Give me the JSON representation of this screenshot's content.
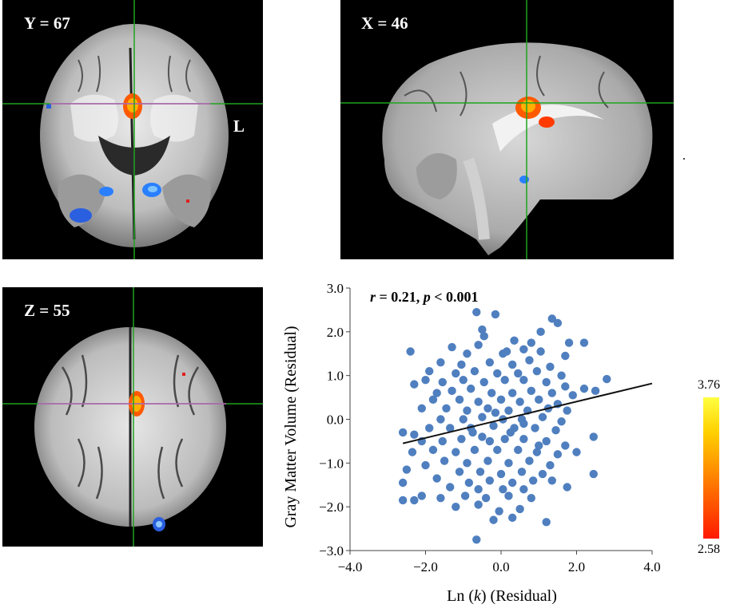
{
  "panels": {
    "coronal": {
      "label": "Y = 67",
      "side_label": "L"
    },
    "sagittal": {
      "label": "X = 46"
    },
    "axial": {
      "label": "Z = 55"
    }
  },
  "colorbar": {
    "max": "3.76",
    "min": "2.58",
    "colors": [
      "#ff1a00",
      "#ff7a00",
      "#ffd000",
      "#ffff40"
    ]
  },
  "colors": {
    "crosshair": "#1fa31f",
    "crosshair_mid": "#c060c0",
    "positive": "#ff6a00",
    "negative": "#2a7fff",
    "points": "#4f7fbf"
  },
  "chart_data": {
    "type": "scatter",
    "annotation": {
      "r_var": "r",
      "r_text": " = 0.21, ",
      "p_var": "p",
      "p_text": " < 0.001"
    },
    "xlabel_prefix": "Ln (",
    "xlabel_var": "k",
    "xlabel_suffix": ") (Residual)",
    "ylabel": "Gray Matter Volume (Residual)",
    "xlim": [
      -4.0,
      4.0
    ],
    "ylim": [
      -3.0,
      3.0
    ],
    "xticks": [
      "−4.0",
      "−2.0",
      "0.0",
      "2.0",
      "4.0"
    ],
    "yticks": [
      "−3.0",
      "−2.0",
      "−1.0",
      "0.0",
      "1.0",
      "2.0",
      "3.0"
    ],
    "fit_line": {
      "x": [
        -2.6,
        4.0
      ],
      "y": [
        -0.55,
        0.82
      ]
    },
    "points": [
      [
        -0.65,
        2.45
      ],
      [
        -0.15,
        2.4
      ],
      [
        1.35,
        2.3
      ],
      [
        1.5,
        2.2
      ],
      [
        -0.5,
        2.05
      ],
      [
        -0.45,
        1.9
      ],
      [
        1.05,
        2.0
      ],
      [
        0.35,
        1.8
      ],
      [
        0.15,
        1.55
      ],
      [
        0.8,
        1.75
      ],
      [
        1.8,
        1.75
      ],
      [
        2.2,
        1.75
      ],
      [
        -2.4,
        1.55
      ],
      [
        -1.3,
        1.65
      ],
      [
        -0.9,
        1.5
      ],
      [
        -0.6,
        1.7
      ],
      [
        0.05,
        1.5
      ],
      [
        0.6,
        1.6
      ],
      [
        1.05,
        1.55
      ],
      [
        1.7,
        1.45
      ],
      [
        -1.6,
        1.3
      ],
      [
        -1.05,
        1.25
      ],
      [
        -0.3,
        1.3
      ],
      [
        0.3,
        1.25
      ],
      [
        0.75,
        1.35
      ],
      [
        1.3,
        1.2
      ],
      [
        -1.9,
        1.1
      ],
      [
        -1.2,
        1.05
      ],
      [
        -0.7,
        1.1
      ],
      [
        -0.1,
        1.05
      ],
      [
        0.45,
        1.05
      ],
      [
        0.95,
        1.1
      ],
      [
        1.6,
        1.0
      ],
      [
        -2.0,
        0.9
      ],
      [
        -1.55,
        0.85
      ],
      [
        -1.0,
        0.9
      ],
      [
        -0.45,
        0.85
      ],
      [
        0.1,
        0.9
      ],
      [
        0.6,
        0.9
      ],
      [
        1.2,
        0.85
      ],
      [
        1.7,
        0.75
      ],
      [
        2.2,
        0.7
      ],
      [
        2.8,
        0.92
      ],
      [
        -2.3,
        0.8
      ],
      [
        -1.7,
        0.6
      ],
      [
        -1.3,
        0.65
      ],
      [
        -0.8,
        0.7
      ],
      [
        -0.25,
        0.6
      ],
      [
        0.3,
        0.6
      ],
      [
        0.8,
        0.65
      ],
      [
        1.35,
        0.6
      ],
      [
        1.9,
        0.55
      ],
      [
        2.5,
        0.65
      ],
      [
        -1.8,
        0.45
      ],
      [
        -1.1,
        0.45
      ],
      [
        -0.6,
        0.4
      ],
      [
        0.0,
        0.45
      ],
      [
        0.5,
        0.4
      ],
      [
        1.0,
        0.45
      ],
      [
        1.5,
        0.35
      ],
      [
        -2.1,
        0.25
      ],
      [
        -1.45,
        0.25
      ],
      [
        -0.9,
        0.2
      ],
      [
        -0.35,
        0.25
      ],
      [
        0.2,
        0.2
      ],
      [
        0.7,
        0.2
      ],
      [
        1.25,
        0.25
      ],
      [
        1.75,
        0.2
      ],
      [
        -1.6,
        0.0
      ],
      [
        -1.0,
        0.0
      ],
      [
        -0.5,
        0.05
      ],
      [
        0.05,
        0.0
      ],
      [
        0.55,
        0.0
      ],
      [
        1.1,
        0.05
      ],
      [
        1.6,
        -0.05
      ],
      [
        -2.6,
        -0.3
      ],
      [
        -2.3,
        -0.35
      ],
      [
        -1.9,
        -0.2
      ],
      [
        -1.35,
        -0.2
      ],
      [
        -0.8,
        -0.2
      ],
      [
        -0.2,
        -0.15
      ],
      [
        0.35,
        -0.2
      ],
      [
        0.9,
        -0.2
      ],
      [
        1.45,
        -0.25
      ],
      [
        2.45,
        -0.4
      ],
      [
        -2.1,
        -0.5
      ],
      [
        -1.55,
        -0.5
      ],
      [
        -1.05,
        -0.45
      ],
      [
        -0.5,
        -0.4
      ],
      [
        0.1,
        -0.45
      ],
      [
        0.6,
        -0.45
      ],
      [
        1.2,
        -0.5
      ],
      [
        1.7,
        -0.6
      ],
      [
        -2.35,
        -0.75
      ],
      [
        -1.8,
        -0.7
      ],
      [
        -1.2,
        -0.75
      ],
      [
        -0.7,
        -0.7
      ],
      [
        -0.1,
        -0.7
      ],
      [
        0.45,
        -0.7
      ],
      [
        0.95,
        -0.75
      ],
      [
        1.5,
        -0.8
      ],
      [
        2.0,
        -0.75
      ],
      [
        -1.5,
        -0.95
      ],
      [
        -0.9,
        -1.0
      ],
      [
        -0.35,
        -0.95
      ],
      [
        0.2,
        -1.0
      ],
      [
        0.75,
        -0.95
      ],
      [
        1.3,
        -1.05
      ],
      [
        -2.5,
        -1.15
      ],
      [
        -2.0,
        -1.05
      ],
      [
        -1.1,
        -1.2
      ],
      [
        -0.55,
        -1.2
      ],
      [
        0.0,
        -1.25
      ],
      [
        0.55,
        -1.2
      ],
      [
        1.1,
        -1.25
      ],
      [
        -1.7,
        -1.35
      ],
      [
        -0.85,
        -1.45
      ],
      [
        -0.3,
        -1.4
      ],
      [
        0.3,
        -1.45
      ],
      [
        0.85,
        -1.4
      ],
      [
        1.35,
        -1.4
      ],
      [
        2.45,
        -1.25
      ],
      [
        -2.6,
        -1.45
      ],
      [
        -1.35,
        -1.55
      ],
      [
        -0.6,
        -1.6
      ],
      [
        0.05,
        -1.6
      ],
      [
        0.6,
        -1.6
      ],
      [
        1.75,
        -1.55
      ],
      [
        -2.1,
        -1.75
      ],
      [
        -1.6,
        -1.8
      ],
      [
        -0.95,
        -1.75
      ],
      [
        -0.4,
        -1.8
      ],
      [
        0.2,
        -1.75
      ],
      [
        0.8,
        -1.8
      ],
      [
        -2.6,
        -1.85
      ],
      [
        -2.3,
        -1.85
      ],
      [
        -1.2,
        -2.0
      ],
      [
        -0.6,
        -1.95
      ],
      [
        -0.05,
        -2.1
      ],
      [
        0.5,
        -2.05
      ],
      [
        -0.2,
        -2.3
      ],
      [
        0.3,
        -2.25
      ],
      [
        1.2,
        -2.35
      ],
      [
        -0.65,
        -2.75
      ],
      [
        -0.3,
        -0.5
      ],
      [
        0.25,
        -0.3
      ],
      [
        0.6,
        -0.1
      ],
      [
        -0.15,
        0.15
      ],
      [
        1.0,
        -0.6
      ],
      [
        -0.75,
        -0.3
      ]
    ]
  }
}
